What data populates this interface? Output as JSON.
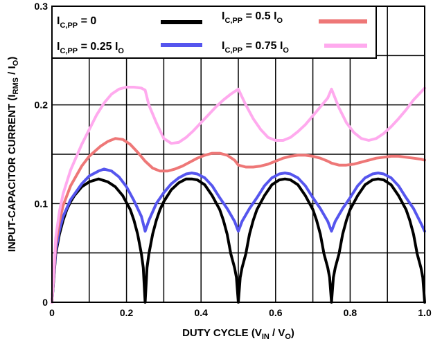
{
  "chart_data": {
    "type": "line",
    "title": "",
    "xlabel": {
      "main": "DUTY CYCLE (V",
      "sub1": "IN",
      "mid": " / V",
      "sub2": "O",
      "end": ")"
    },
    "ylabel": {
      "main": "INPUT-CAPACITOR CURRENT (I",
      "sub1": "RMS",
      "mid": " / I",
      "sub2": "O",
      "end": ")"
    },
    "xlim": [
      0,
      1.0
    ],
    "ylim": [
      0,
      0.3
    ],
    "x_ticks": [
      {
        "value": 0,
        "label": "0"
      },
      {
        "value": 0.2,
        "label": "0.2"
      },
      {
        "value": 0.4,
        "label": "0.4"
      },
      {
        "value": 0.6,
        "label": "0.6"
      },
      {
        "value": 0.8,
        "label": "0.8"
      },
      {
        "value": 1.0,
        "label": "1.0"
      }
    ],
    "y_ticks": [
      {
        "value": 0,
        "label": "0"
      },
      {
        "value": 0.1,
        "label": "0.1"
      },
      {
        "value": 0.2,
        "label": "0.2"
      },
      {
        "value": 0.3,
        "label": "0.3"
      }
    ],
    "grid": true,
    "legend_position": "top",
    "series": [
      {
        "id": "icpp-0",
        "legend": {
          "base": "I",
          "sub": "C,PP",
          "rest": " = 0",
          "rest_base": "",
          "rest_sub": ""
        },
        "color": "#000000",
        "x": [
          0,
          0.01,
          0.02,
          0.03,
          0.04,
          0.05,
          0.06,
          0.08,
          0.1,
          0.125,
          0.15,
          0.17,
          0.19,
          0.21,
          0.22,
          0.23,
          0.24,
          0.245,
          0.25,
          0.255,
          0.26,
          0.27,
          0.28,
          0.29,
          0.3,
          0.32,
          0.34,
          0.36,
          0.375,
          0.39,
          0.41,
          0.43,
          0.45,
          0.46,
          0.47,
          0.48,
          0.49,
          0.495,
          0.5,
          0.505,
          0.51,
          0.52,
          0.53,
          0.54,
          0.55,
          0.57,
          0.59,
          0.61,
          0.625,
          0.64,
          0.66,
          0.68,
          0.7,
          0.71,
          0.72,
          0.73,
          0.74,
          0.745,
          0.75,
          0.755,
          0.76,
          0.77,
          0.78,
          0.79,
          0.8,
          0.82,
          0.84,
          0.86,
          0.875,
          0.89,
          0.91,
          0.93,
          0.95,
          0.96,
          0.97,
          0.98,
          0.99,
          0.995,
          1.0
        ],
        "y": [
          0,
          0.049,
          0.069,
          0.083,
          0.094,
          0.102,
          0.108,
          0.117,
          0.122,
          0.125,
          0.122,
          0.117,
          0.108,
          0.094,
          0.083,
          0.069,
          0.049,
          0.035,
          0,
          0.035,
          0.049,
          0.069,
          0.083,
          0.094,
          0.102,
          0.114,
          0.121,
          0.125,
          0.125,
          0.124,
          0.119,
          0.108,
          0.094,
          0.083,
          0.069,
          0.049,
          0.035,
          0.025,
          0,
          0.025,
          0.035,
          0.049,
          0.069,
          0.083,
          0.094,
          0.108,
          0.119,
          0.124,
          0.125,
          0.124,
          0.119,
          0.108,
          0.094,
          0.083,
          0.069,
          0.049,
          0.035,
          0.025,
          0,
          0.025,
          0.035,
          0.049,
          0.069,
          0.083,
          0.094,
          0.108,
          0.119,
          0.124,
          0.125,
          0.124,
          0.119,
          0.108,
          0.094,
          0.083,
          0.069,
          0.049,
          0.035,
          0.025,
          0
        ]
      },
      {
        "id": "icpp-025",
        "legend": {
          "base": "I",
          "sub": "C,PP",
          "rest": " = 0.25 ",
          "rest_base": "I",
          "rest_sub": "O"
        },
        "color": "#5555ee",
        "x": [
          0,
          0.01,
          0.02,
          0.03,
          0.05,
          0.08,
          0.1,
          0.125,
          0.14,
          0.16,
          0.18,
          0.2,
          0.22,
          0.24,
          0.25,
          0.26,
          0.28,
          0.3,
          0.32,
          0.34,
          0.36,
          0.375,
          0.39,
          0.41,
          0.43,
          0.45,
          0.47,
          0.49,
          0.5,
          0.51,
          0.53,
          0.55,
          0.57,
          0.59,
          0.61,
          0.625,
          0.64,
          0.66,
          0.68,
          0.7,
          0.72,
          0.74,
          0.75,
          0.76,
          0.78,
          0.8,
          0.82,
          0.84,
          0.86,
          0.875,
          0.89,
          0.91,
          0.93,
          0.95,
          0.97,
          0.99,
          1.0
        ],
        "y": [
          0,
          0.052,
          0.073,
          0.087,
          0.104,
          0.12,
          0.128,
          0.133,
          0.135,
          0.133,
          0.127,
          0.117,
          0.103,
          0.087,
          0.072,
          0.083,
          0.1,
          0.111,
          0.12,
          0.126,
          0.13,
          0.131,
          0.13,
          0.126,
          0.118,
          0.106,
          0.095,
          0.082,
          0.072,
          0.082,
          0.095,
          0.106,
          0.118,
          0.126,
          0.13,
          0.131,
          0.13,
          0.126,
          0.118,
          0.106,
          0.095,
          0.082,
          0.072,
          0.082,
          0.095,
          0.106,
          0.118,
          0.126,
          0.13,
          0.131,
          0.13,
          0.126,
          0.118,
          0.106,
          0.095,
          0.08,
          0.072
        ]
      },
      {
        "id": "icpp-05",
        "legend": {
          "base": "I",
          "sub": "C,PP",
          "rest": " = 0.5 ",
          "rest_base": "I",
          "rest_sub": "O"
        },
        "color": "#ee7777",
        "x": [
          0,
          0.01,
          0.02,
          0.03,
          0.05,
          0.08,
          0.1,
          0.13,
          0.15,
          0.17,
          0.19,
          0.21,
          0.23,
          0.25,
          0.27,
          0.29,
          0.31,
          0.33,
          0.35,
          0.37,
          0.39,
          0.41,
          0.43,
          0.45,
          0.47,
          0.49,
          0.5,
          0.52,
          0.54,
          0.56,
          0.58,
          0.6,
          0.62,
          0.64,
          0.66,
          0.68,
          0.7,
          0.72,
          0.74,
          0.75,
          0.77,
          0.79,
          0.81,
          0.83,
          0.85,
          0.87,
          0.89,
          0.91,
          0.93,
          0.95,
          0.97,
          0.99,
          1.0
        ],
        "y": [
          0,
          0.058,
          0.082,
          0.098,
          0.118,
          0.138,
          0.148,
          0.158,
          0.163,
          0.166,
          0.165,
          0.16,
          0.152,
          0.143,
          0.136,
          0.133,
          0.133,
          0.135,
          0.138,
          0.142,
          0.146,
          0.149,
          0.151,
          0.151,
          0.149,
          0.144,
          0.139,
          0.137,
          0.137,
          0.138,
          0.14,
          0.143,
          0.146,
          0.148,
          0.149,
          0.149,
          0.148,
          0.146,
          0.143,
          0.141,
          0.139,
          0.139,
          0.14,
          0.142,
          0.144,
          0.146,
          0.147,
          0.148,
          0.148,
          0.147,
          0.146,
          0.145,
          0.144
        ]
      },
      {
        "id": "icpp-075",
        "legend": {
          "base": "I",
          "sub": "C,PP",
          "rest": " = 0.75 ",
          "rest_base": "I",
          "rest_sub": "O"
        },
        "color": "#ffaaee",
        "x": [
          0,
          0.01,
          0.02,
          0.03,
          0.05,
          0.08,
          0.1,
          0.12,
          0.14,
          0.16,
          0.18,
          0.2,
          0.22,
          0.24,
          0.25,
          0.26,
          0.28,
          0.3,
          0.32,
          0.34,
          0.36,
          0.38,
          0.4,
          0.42,
          0.44,
          0.46,
          0.48,
          0.5,
          0.52,
          0.54,
          0.56,
          0.58,
          0.6,
          0.62,
          0.64,
          0.66,
          0.68,
          0.7,
          0.72,
          0.74,
          0.75,
          0.77,
          0.79,
          0.81,
          0.83,
          0.85,
          0.87,
          0.89,
          0.91,
          0.93,
          0.95,
          0.97,
          0.99,
          1.0
        ],
        "y": [
          0,
          0.065,
          0.092,
          0.11,
          0.134,
          0.16,
          0.175,
          0.19,
          0.202,
          0.211,
          0.216,
          0.218,
          0.218,
          0.217,
          0.215,
          0.2,
          0.182,
          0.166,
          0.161,
          0.162,
          0.167,
          0.174,
          0.182,
          0.19,
          0.198,
          0.205,
          0.211,
          0.216,
          0.2,
          0.186,
          0.175,
          0.167,
          0.164,
          0.164,
          0.167,
          0.173,
          0.18,
          0.189,
          0.198,
          0.207,
          0.216,
          0.197,
          0.182,
          0.172,
          0.166,
          0.164,
          0.166,
          0.171,
          0.178,
          0.186,
          0.195,
          0.205,
          0.213,
          0.217
        ]
      }
    ]
  }
}
